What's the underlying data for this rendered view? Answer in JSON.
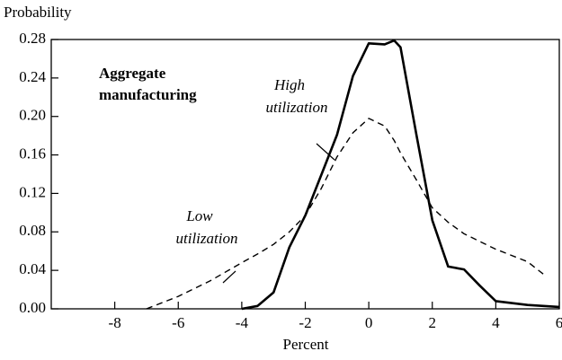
{
  "chart_data": {
    "type": "line",
    "ylabel": "Probability",
    "xlabel": "Percent",
    "annotations": [
      {
        "text": "Aggregate manufacturing",
        "bold": true
      }
    ],
    "x": [
      -7,
      -6,
      -5,
      -4,
      -3.5,
      -3,
      -2.5,
      -2,
      -1.5,
      -1,
      -0.5,
      0,
      0.5,
      0.8,
      1,
      1.5,
      2,
      2.5,
      3,
      3.5,
      4,
      5,
      5.5,
      6
    ],
    "series": [
      {
        "name": "High utilization",
        "color": "#000000",
        "dash": false,
        "values": [
          null,
          null,
          null,
          0,
          0.003,
          0.017,
          0.064,
          0.097,
          0.139,
          0.181,
          0.242,
          0.276,
          0.275,
          0.279,
          0.272,
          0.181,
          0.092,
          0.044,
          0.041,
          0.024,
          0.008,
          0.004,
          0.003,
          0.002
        ]
      },
      {
        "name": "Low utilization",
        "color": "#000000",
        "dash": true,
        "values": [
          0,
          0.013,
          0.029,
          0.048,
          0.057,
          0.067,
          0.08,
          0.097,
          0.125,
          0.158,
          0.183,
          0.198,
          0.19,
          0.175,
          0.162,
          0.134,
          0.105,
          0.09,
          0.078,
          0.07,
          0.062,
          0.049,
          0.036,
          null
        ]
      }
    ],
    "xlim": [
      -10,
      6
    ],
    "xticks": [
      -8,
      -6,
      -4,
      -2,
      0,
      2,
      4,
      6
    ],
    "ylim": [
      0,
      0.28
    ],
    "yticks": [
      {
        "value": 0,
        "label": "0.00"
      },
      {
        "value": 0.04,
        "label": "0.04"
      },
      {
        "value": 0.08,
        "label": "0.08"
      },
      {
        "value": 0.12,
        "label": "0.12"
      },
      {
        "value": 0.16,
        "label": "0.16"
      },
      {
        "value": 0.2,
        "label": "0.20"
      },
      {
        "value": 0.24,
        "label": "0.24"
      },
      {
        "value": 0.28,
        "label": "0.28"
      }
    ],
    "grid": false
  }
}
